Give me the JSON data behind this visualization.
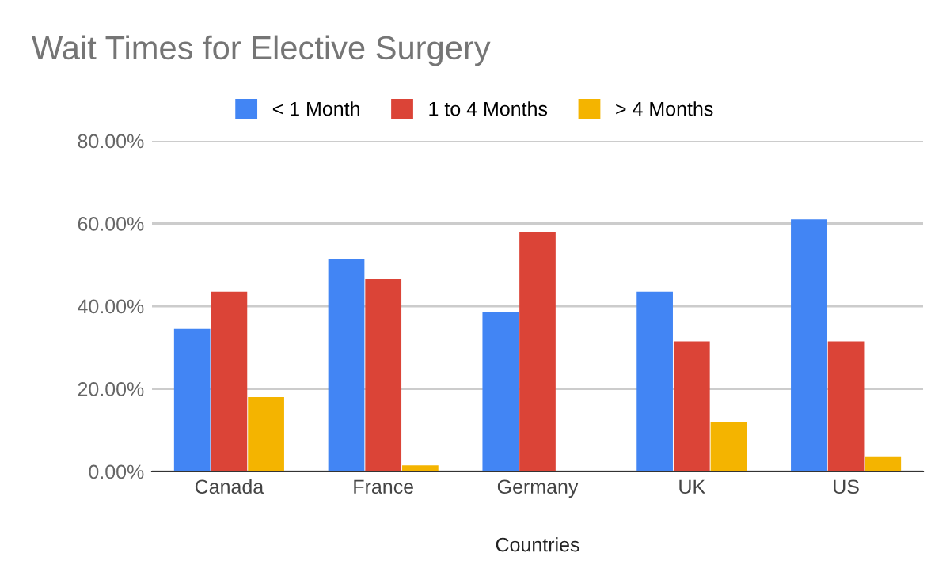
{
  "chart_data": {
    "type": "bar",
    "title": "Wait Times for Elective Surgery",
    "xlabel": "Countries",
    "categories": [
      "Canada",
      "France",
      "Germany",
      "UK",
      "US"
    ],
    "series": [
      {
        "name": "< 1 Month",
        "color": "#4285f4",
        "values": [
          34.5,
          51.5,
          38.5,
          43.5,
          61
        ]
      },
      {
        "name": "1 to 4 Months",
        "color": "#db4437",
        "values": [
          43.5,
          46.5,
          58,
          31.5,
          31.5
        ]
      },
      {
        "name": "> 4 Months",
        "color": "#f4b400",
        "values": [
          18,
          1.5,
          0,
          12,
          3.5
        ]
      }
    ],
    "ylim": [
      0,
      80
    ],
    "yticks": [
      {
        "value": 0,
        "label": "0.00%"
      },
      {
        "value": 20,
        "label": "20.00%"
      },
      {
        "value": 40,
        "label": "40.00%"
      },
      {
        "value": 60,
        "label": "60.00%"
      },
      {
        "value": 80,
        "label": "80.00%"
      }
    ],
    "grid": "y",
    "legend": "top"
  }
}
